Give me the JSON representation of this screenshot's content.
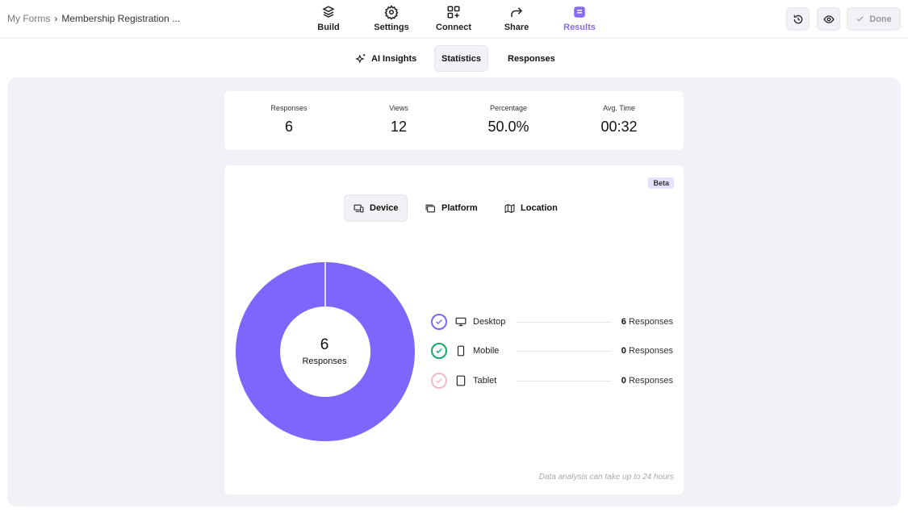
{
  "breadcrumb": {
    "root": "My Forms",
    "separator": "›",
    "current": "Membership Registration ..."
  },
  "nav": [
    {
      "label": "Build",
      "icon": "layers-icon"
    },
    {
      "label": "Settings",
      "icon": "gear-icon"
    },
    {
      "label": "Connect",
      "icon": "grid-plus-icon"
    },
    {
      "label": "Share",
      "icon": "share-arrow-icon"
    },
    {
      "label": "Results",
      "icon": "inbox-icon",
      "active": true
    }
  ],
  "actions": {
    "done_label": "Done"
  },
  "subtabs": [
    {
      "label": "AI Insights"
    },
    {
      "label": "Statistics",
      "active": true
    },
    {
      "label": "Responses"
    }
  ],
  "stats": [
    {
      "label": "Responses",
      "value": "6"
    },
    {
      "label": "Views",
      "value": "12"
    },
    {
      "label": "Percentage",
      "value": "50.0%"
    },
    {
      "label": "Avg. Time",
      "value": "00:32"
    }
  ],
  "breakdown": {
    "badge": "Beta",
    "tabs": [
      {
        "label": "Device",
        "active": true
      },
      {
        "label": "Platform"
      },
      {
        "label": "Location"
      }
    ],
    "center": {
      "value": "6",
      "label": "Responses"
    },
    "items": [
      {
        "name": "Desktop",
        "count": "6",
        "unit": "Responses",
        "color": "#7c66f5"
      },
      {
        "name": "Mobile",
        "count": "0",
        "unit": "Responses",
        "color": "#19a565"
      },
      {
        "name": "Tablet",
        "count": "0",
        "unit": "Responses",
        "color": "#f4b6cf"
      }
    ],
    "note": "Data analysis can take up to 24 hours"
  },
  "accent": "#8a6cf0",
  "donut_color": "#7e66fc"
}
